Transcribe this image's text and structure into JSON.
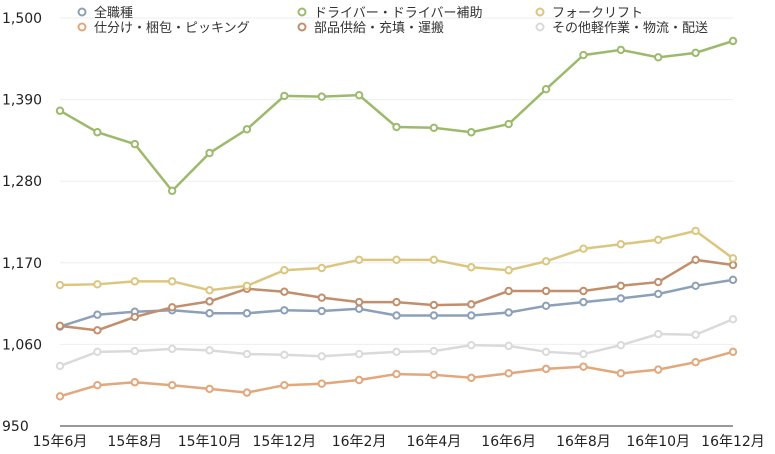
{
  "chart_data": {
    "type": "line",
    "title": "",
    "xlabel": "",
    "ylabel": "",
    "ylim": [
      950,
      1500
    ],
    "yticks": [
      950,
      1060,
      1170,
      1280,
      1390,
      1500
    ],
    "ytick_labels": [
      "950",
      "1,060",
      "1,170",
      "1,280",
      "1,390",
      "1,500"
    ],
    "x": [
      "15年6月",
      "15年7月",
      "15年8月",
      "15年9月",
      "15年10月",
      "15年11月",
      "15年12月",
      "16年1月",
      "16年2月",
      "16年3月",
      "16年4月",
      "16年5月",
      "16年6月",
      "16年7月",
      "16年8月",
      "16年9月",
      "16年10月",
      "16年11月",
      "16年12月"
    ],
    "xtick_labels": [
      "15年6月",
      "15年8月",
      "15年10月",
      "15年12月",
      "16年2月",
      "16年4月",
      "16年6月",
      "16年8月",
      "16年10月",
      "16年12月"
    ],
    "grid": true,
    "legend_position": "top",
    "series": [
      {
        "name": "全職種",
        "color": "#8da0b9",
        "values": [
          1084,
          1100,
          1104,
          1106,
          1102,
          1102,
          1106,
          1105,
          1108,
          1099,
          1099,
          1099,
          1103,
          1112,
          1117,
          1122,
          1128,
          1139,
          1147
        ]
      },
      {
        "name": "仕分け・梱包・ピッキング",
        "color": "#e3a77c",
        "values": [
          990,
          1005,
          1009,
          1005,
          1000,
          995,
          1005,
          1007,
          1012,
          1020,
          1019,
          1015,
          1021,
          1027,
          1030,
          1021,
          1026,
          1036,
          1050
        ]
      },
      {
        "name": "ドライバー・ドライバー補助",
        "color": "#9dba6c",
        "values": [
          1375,
          1346,
          1330,
          1267,
          1318,
          1350,
          1395,
          1394,
          1396,
          1353,
          1352,
          1346,
          1357,
          1404,
          1450,
          1457,
          1447,
          1453,
          1469
        ]
      },
      {
        "name": "部品供給・充填・運搬",
        "color": "#c28e6c",
        "values": [
          1085,
          1079,
          1097,
          1110,
          1118,
          1135,
          1131,
          1123,
          1117,
          1117,
          1113,
          1114,
          1132,
          1132,
          1132,
          1139,
          1144,
          1174,
          1167
        ]
      },
      {
        "name": "フォークリフト",
        "color": "#dcc67f",
        "values": [
          1140,
          1141,
          1145,
          1145,
          1133,
          1139,
          1160,
          1163,
          1174,
          1174,
          1174,
          1164,
          1160,
          1172,
          1189,
          1195,
          1201,
          1213,
          1176
        ]
      },
      {
        "name": "その他軽作業・物流・配送",
        "color": "#dadada",
        "values": [
          1031,
          1050,
          1051,
          1054,
          1052,
          1047,
          1046,
          1044,
          1047,
          1050,
          1051,
          1059,
          1058,
          1050,
          1047,
          1059,
          1074,
          1073,
          1094
        ]
      }
    ]
  }
}
